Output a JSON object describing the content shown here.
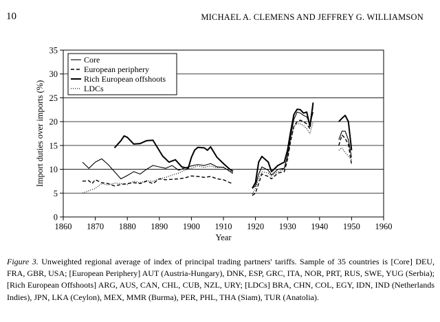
{
  "header": {
    "page_number": "10",
    "running_head": "MICHAEL A. CLEMENS AND JEFFREY G. WILLIAMSON"
  },
  "caption": {
    "label": "Figure 3.",
    "text": " Unweighted regional average of index of principal trading partners' tariffs. Sample of 35 countries is [Core] DEU, FRA, GBR, USA; [European Periphery] AUT (Austria-Hungary), DNK, ESP, GRC, ITA, NOR, PRT, RUS, SWE, YUG (Serbia); [Rich European Offshoots] ARG, AUS, CAN, CHL, CUB, NZL, URY; [LDCs] BRA, CHN, COL, EGY, IDN, IND (Netherlands Indies), JPN, LKA (Ceylon), MEX, MMR (Burma), PER, PHL, THA (Siam), TUR (Anatolia)."
  },
  "chart_data": {
    "type": "line",
    "xlabel": "Year",
    "ylabel": "Import duties over imports (%)",
    "xlim": [
      1860,
      1960
    ],
    "ylim": [
      0,
      35
    ],
    "xticks": [
      1860,
      1870,
      1880,
      1890,
      1900,
      1910,
      1920,
      1930,
      1940,
      1950,
      1960
    ],
    "yticks": [
      0,
      5,
      10,
      15,
      20,
      25,
      30,
      35
    ],
    "grid": "horizontal",
    "legend_position": "top-left",
    "series": [
      {
        "name": "Core",
        "style": "solid-thin",
        "segments": [
          [
            [
              1866,
              11.5
            ],
            [
              1868,
              10.2
            ],
            [
              1870,
              11.5
            ],
            [
              1872,
              12.2
            ],
            [
              1874,
              11.0
            ],
            [
              1876,
              9.5
            ],
            [
              1878,
              8.0
            ],
            [
              1880,
              8.7
            ],
            [
              1882,
              9.5
            ],
            [
              1884,
              9.0
            ],
            [
              1886,
              10.0
            ],
            [
              1888,
              10.8
            ],
            [
              1890,
              10.5
            ],
            [
              1892,
              10.2
            ],
            [
              1894,
              10.8
            ],
            [
              1896,
              9.8
            ],
            [
              1898,
              10.3
            ],
            [
              1900,
              10.7
            ],
            [
              1902,
              11.0
            ],
            [
              1904,
              10.8
            ],
            [
              1906,
              11.2
            ],
            [
              1908,
              10.5
            ],
            [
              1910,
              10.4
            ],
            [
              1912,
              9.6
            ],
            [
              1913,
              9.2
            ]
          ],
          [
            [
              1919,
              6.0
            ],
            [
              1920,
              6.5
            ],
            [
              1921,
              9.0
            ],
            [
              1922,
              10.5
            ],
            [
              1924,
              9.8
            ],
            [
              1925,
              8.8
            ],
            [
              1927,
              10.0
            ],
            [
              1929,
              10.2
            ],
            [
              1930,
              13.0
            ],
            [
              1931,
              17.0
            ],
            [
              1932,
              20.5
            ],
            [
              1933,
              22.0
            ],
            [
              1934,
              21.8
            ],
            [
              1935,
              21.3
            ],
            [
              1936,
              21.0
            ],
            [
              1937,
              19.5
            ],
            [
              1938,
              22.0
            ]
          ],
          [
            [
              1946,
              16.2
            ],
            [
              1947,
              18.0
            ],
            [
              1948,
              18.0
            ],
            [
              1949,
              16.2
            ],
            [
              1950,
              12.5
            ]
          ]
        ]
      },
      {
        "name": "European periphery",
        "style": "dashed",
        "segments": [
          [
            [
              1866,
              7.5
            ],
            [
              1868,
              7.6
            ],
            [
              1869,
              7.0
            ],
            [
              1870,
              7.8
            ],
            [
              1872,
              7.2
            ],
            [
              1874,
              7.0
            ],
            [
              1876,
              6.5
            ],
            [
              1878,
              6.8
            ],
            [
              1880,
              7.0
            ],
            [
              1882,
              7.2
            ],
            [
              1884,
              7.0
            ],
            [
              1886,
              7.5
            ],
            [
              1888,
              7.0
            ],
            [
              1890,
              8.0
            ],
            [
              1892,
              7.8
            ],
            [
              1894,
              7.9
            ],
            [
              1896,
              8.0
            ],
            [
              1898,
              8.2
            ],
            [
              1900,
              8.6
            ],
            [
              1902,
              8.5
            ],
            [
              1904,
              8.3
            ],
            [
              1906,
              8.5
            ],
            [
              1908,
              8.0
            ],
            [
              1910,
              7.8
            ],
            [
              1912,
              7.2
            ],
            [
              1913,
              7.0
            ]
          ],
          [
            [
              1919,
              4.5
            ],
            [
              1920,
              5.0
            ],
            [
              1921,
              7.0
            ],
            [
              1922,
              9.0
            ],
            [
              1924,
              8.5
            ],
            [
              1925,
              8.0
            ],
            [
              1927,
              9.2
            ],
            [
              1929,
              9.5
            ],
            [
              1930,
              12.0
            ],
            [
              1931,
              16.0
            ],
            [
              1932,
              19.0
            ],
            [
              1933,
              20.0
            ],
            [
              1934,
              20.3
            ],
            [
              1935,
              20.0
            ],
            [
              1936,
              19.5
            ],
            [
              1937,
              18.5
            ],
            [
              1938,
              23.5
            ]
          ],
          [
            [
              1946,
              15.0
            ],
            [
              1947,
              17.2
            ],
            [
              1948,
              16.5
            ],
            [
              1949,
              15.2
            ],
            [
              1950,
              11.0
            ]
          ]
        ]
      },
      {
        "name": "Rich European offshoots",
        "style": "solid-thick",
        "segments": [
          [
            [
              1876,
              14.5
            ],
            [
              1878,
              16.0
            ],
            [
              1879,
              17.0
            ],
            [
              1880,
              16.7
            ],
            [
              1882,
              15.3
            ],
            [
              1884,
              15.4
            ],
            [
              1886,
              16.0
            ],
            [
              1888,
              16.1
            ],
            [
              1889,
              15.0
            ],
            [
              1891,
              12.8
            ],
            [
              1893,
              11.5
            ],
            [
              1895,
              12.0
            ],
            [
              1897,
              10.5
            ],
            [
              1899,
              10.2
            ],
            [
              1900,
              12.5
            ],
            [
              1901,
              14.0
            ],
            [
              1902,
              14.6
            ],
            [
              1904,
              14.5
            ],
            [
              1905,
              14.0
            ],
            [
              1906,
              14.7
            ],
            [
              1908,
              12.5
            ],
            [
              1910,
              11.2
            ],
            [
              1912,
              10.0
            ],
            [
              1913,
              9.6
            ]
          ],
          [
            [
              1919,
              6.0
            ],
            [
              1920,
              7.2
            ],
            [
              1921,
              11.5
            ],
            [
              1922,
              12.7
            ],
            [
              1924,
              11.5
            ],
            [
              1925,
              9.5
            ],
            [
              1927,
              10.8
            ],
            [
              1929,
              11.5
            ],
            [
              1930,
              14.0
            ],
            [
              1931,
              18.0
            ],
            [
              1932,
              21.5
            ],
            [
              1933,
              22.6
            ],
            [
              1934,
              22.5
            ],
            [
              1935,
              21.8
            ],
            [
              1936,
              22.0
            ],
            [
              1937,
              19.0
            ],
            [
              1938,
              24.0
            ]
          ],
          [
            [
              1946,
              20.0
            ],
            [
              1947,
              20.7
            ],
            [
              1948,
              21.3
            ],
            [
              1949,
              20.0
            ],
            [
              1950,
              14.0
            ]
          ]
        ]
      },
      {
        "name": "LDCs",
        "style": "dotted",
        "segments": [
          [
            [
              1866,
              5.0
            ],
            [
              1868,
              5.5
            ],
            [
              1870,
              6.0
            ],
            [
              1872,
              7.0
            ],
            [
              1874,
              6.7
            ],
            [
              1876,
              7.1
            ],
            [
              1878,
              7.0
            ],
            [
              1880,
              6.8
            ],
            [
              1882,
              7.5
            ],
            [
              1884,
              7.2
            ],
            [
              1886,
              7.6
            ],
            [
              1888,
              7.5
            ],
            [
              1890,
              8.0
            ],
            [
              1892,
              8.3
            ],
            [
              1894,
              8.8
            ],
            [
              1896,
              9.2
            ],
            [
              1898,
              9.8
            ],
            [
              1900,
              10.2
            ],
            [
              1902,
              10.7
            ],
            [
              1904,
              10.4
            ],
            [
              1906,
              10.7
            ],
            [
              1908,
              10.3
            ],
            [
              1910,
              10.5
            ],
            [
              1912,
              9.5
            ],
            [
              1913,
              9.0
            ]
          ],
          [
            [
              1919,
              4.8
            ],
            [
              1920,
              6.0
            ],
            [
              1921,
              8.0
            ],
            [
              1922,
              9.5
            ],
            [
              1924,
              9.2
            ],
            [
              1925,
              8.6
            ],
            [
              1927,
              9.5
            ],
            [
              1929,
              10.0
            ],
            [
              1930,
              12.5
            ],
            [
              1931,
              16.0
            ],
            [
              1932,
              19.0
            ],
            [
              1933,
              19.6
            ],
            [
              1934,
              19.5
            ],
            [
              1935,
              19.2
            ],
            [
              1936,
              18.5
            ],
            [
              1937,
              17.5
            ],
            [
              1938,
              20.0
            ]
          ],
          [
            [
              1946,
              14.0
            ],
            [
              1947,
              14.5
            ],
            [
              1948,
              13.5
            ],
            [
              1949,
              12.8
            ],
            [
              1950,
              12.0
            ]
          ]
        ]
      }
    ]
  }
}
